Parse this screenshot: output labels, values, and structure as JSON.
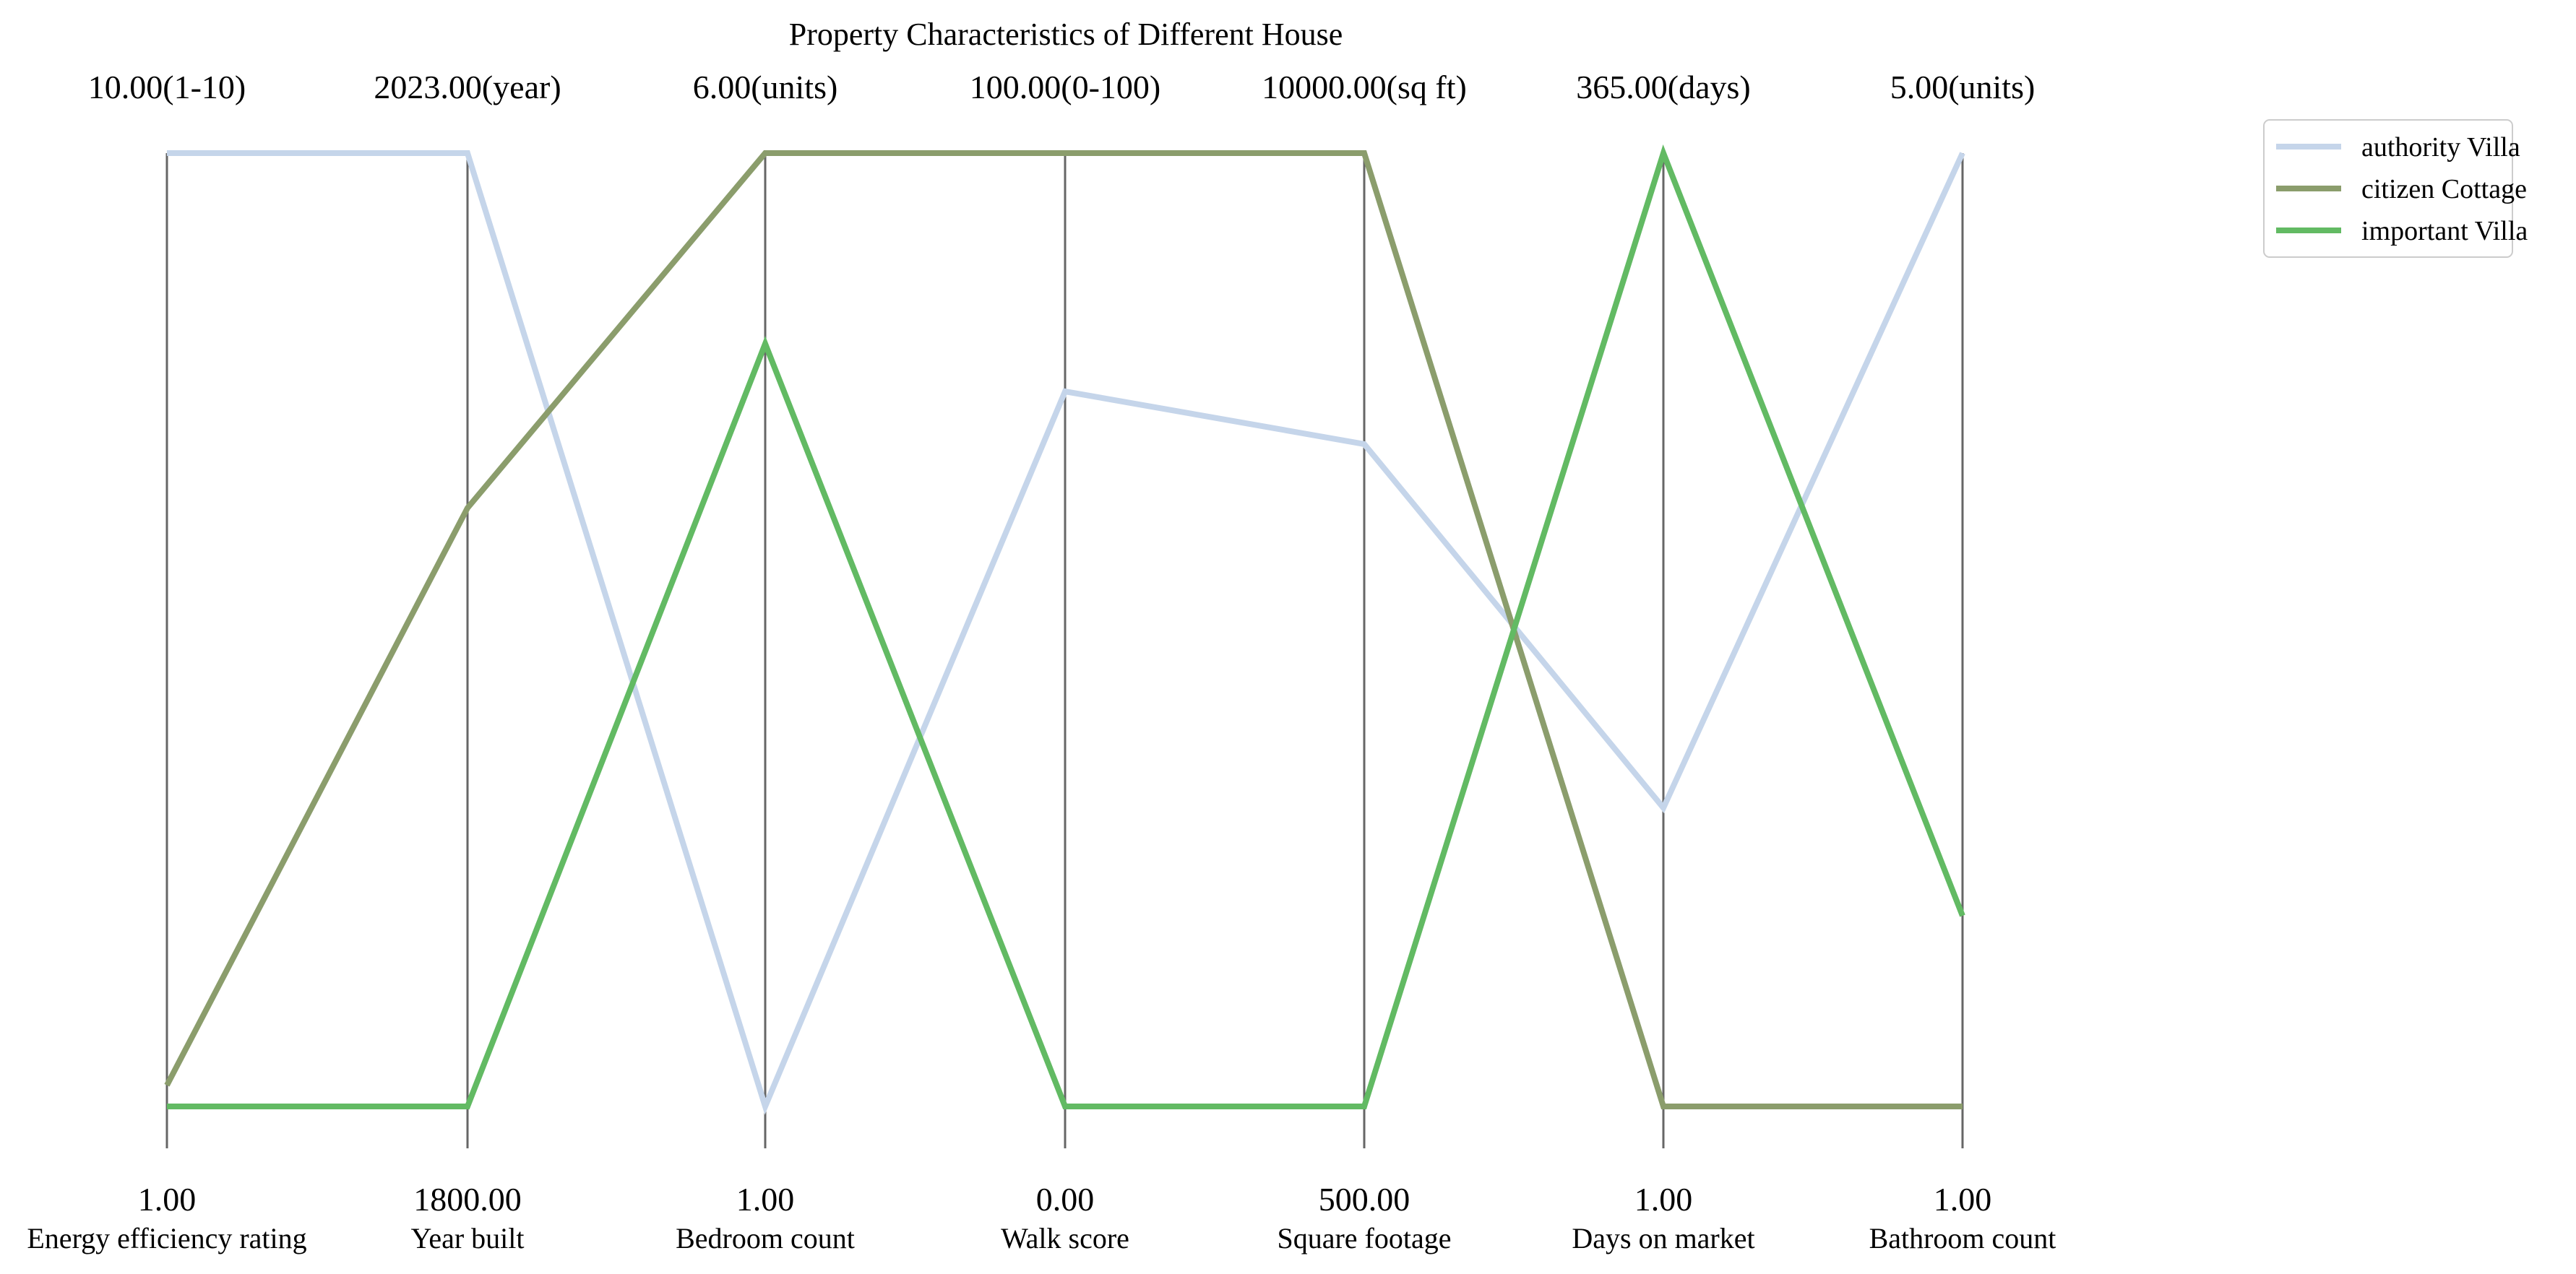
{
  "chart_data": {
    "type": "parallel-coordinates",
    "title": "Property Characteristics of Different House",
    "axes": [
      {
        "name": "Energy efficiency rating",
        "min": 1,
        "max": 10,
        "min_label": "1.00",
        "max_label": "10.00(1-10)"
      },
      {
        "name": "Year built",
        "min": 1800,
        "max": 2023,
        "min_label": "1800.00",
        "max_label": "2023.00(year)"
      },
      {
        "name": "Bedroom count",
        "min": 1,
        "max": 6,
        "min_label": "1.00",
        "max_label": "6.00(units)"
      },
      {
        "name": "Walk score",
        "min": 0,
        "max": 100,
        "min_label": "0.00",
        "max_label": "100.00(0-100)"
      },
      {
        "name": "Square footage",
        "min": 500,
        "max": 10000,
        "min_label": "500.00",
        "max_label": "10000.00(sq ft)"
      },
      {
        "name": "Days on market",
        "min": 1,
        "max": 365,
        "min_label": "1.00",
        "max_label": "365.00(days)"
      },
      {
        "name": "Bathroom count",
        "min": 1,
        "max": 5,
        "min_label": "1.00",
        "max_label": "5.00(units)"
      }
    ],
    "series": [
      {
        "name": "authority Villa",
        "color": "#c5d5ea",
        "values": [
          10,
          2023,
          1,
          75,
          7100,
          115,
          5
        ]
      },
      {
        "name": "citizen Cottage",
        "color": "#8b9d6c",
        "values": [
          1.2,
          1940,
          6,
          100,
          10000,
          1,
          1
        ]
      },
      {
        "name": "important Villa",
        "color": "#62ba63",
        "values": [
          1,
          1800,
          5,
          0,
          500,
          365,
          1.8
        ]
      }
    ],
    "legend_position": "top-right",
    "grid": false
  }
}
